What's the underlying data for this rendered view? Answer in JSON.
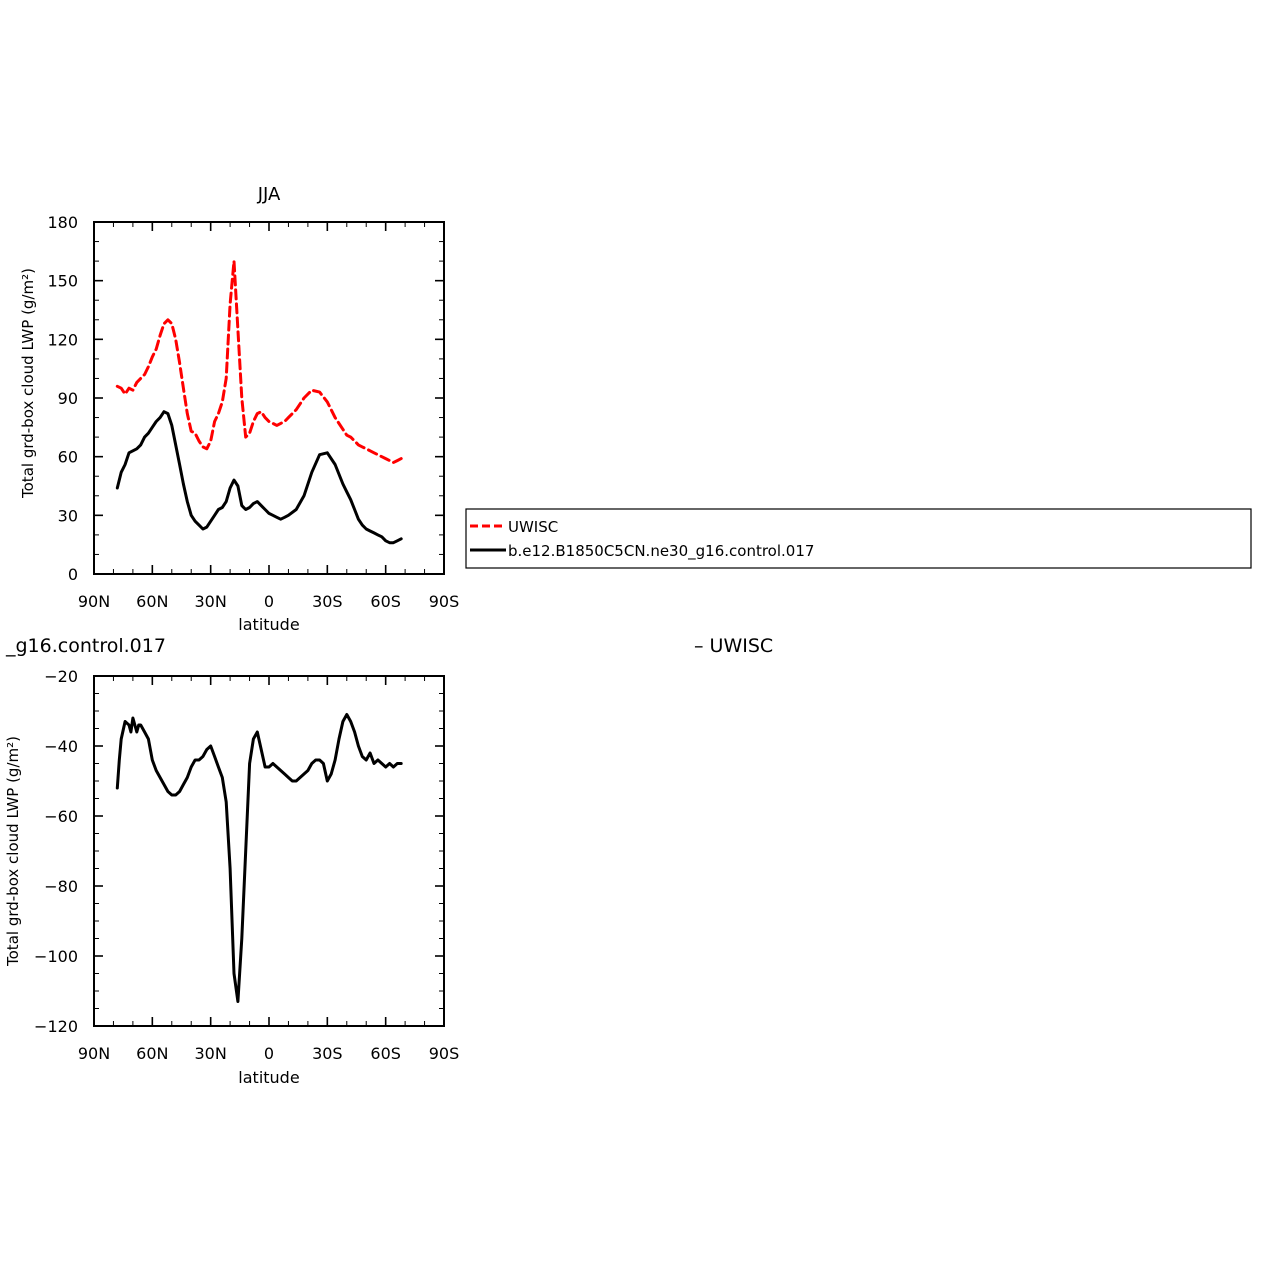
{
  "chart_data": [
    {
      "type": "line",
      "title": "JJA",
      "xlabel": "latitude",
      "ylabel": "Total grd-box cloud LWP (g/m²)",
      "xlim": [
        90,
        -90
      ],
      "ylim": [
        0,
        180
      ],
      "xticks": [
        {
          "value": 90,
          "label": "90N"
        },
        {
          "value": 60,
          "label": "60N"
        },
        {
          "value": 30,
          "label": "30N"
        },
        {
          "value": 0,
          "label": "0"
        },
        {
          "value": -30,
          "label": "30S"
        },
        {
          "value": -60,
          "label": "60S"
        },
        {
          "value": -90,
          "label": "90S"
        }
      ],
      "yticks": [
        {
          "value": 0,
          "label": "0"
        },
        {
          "value": 30,
          "label": "30"
        },
        {
          "value": 60,
          "label": "60"
        },
        {
          "value": 90,
          "label": "90"
        },
        {
          "value": 120,
          "label": "120"
        },
        {
          "value": 150,
          "label": "150"
        },
        {
          "value": 180,
          "label": "180"
        }
      ],
      "legend": {
        "placement": "right",
        "entries": [
          "UWISC",
          "b.e12.B1850C5CN.ne30_g16.control.017"
        ]
      },
      "series": [
        {
          "name": "UWISC",
          "color": "#ff0000",
          "dash": "dashed",
          "x": [
            78,
            76,
            74,
            72,
            70,
            68,
            66,
            64,
            62,
            60,
            58,
            56,
            54,
            52,
            50,
            48,
            46,
            44,
            42,
            40,
            38,
            36,
            34,
            32,
            30,
            28,
            26,
            24,
            22,
            20,
            18,
            16,
            14,
            12,
            10,
            8,
            6,
            4,
            2,
            0,
            -2,
            -4,
            -6,
            -8,
            -10,
            -14,
            -18,
            -22,
            -26,
            -30,
            -34,
            -38,
            -40,
            -42,
            -44,
            -46,
            -48,
            -50,
            -52,
            -54,
            -56,
            -58,
            -60,
            -62,
            -64,
            -66,
            -68
          ],
          "y": [
            96,
            95,
            92,
            95,
            94,
            98,
            100,
            102,
            106,
            111,
            115,
            122,
            128,
            130,
            128,
            120,
            108,
            95,
            82,
            73,
            72,
            68,
            65,
            64,
            68,
            78,
            82,
            88,
            100,
            138,
            160,
            125,
            90,
            70,
            72,
            78,
            82,
            83,
            80,
            78,
            77,
            76,
            77,
            78,
            80,
            84,
            90,
            94,
            93,
            88,
            80,
            74,
            71,
            70,
            68,
            66,
            65,
            64,
            63,
            62,
            61,
            60,
            59,
            58,
            57,
            58,
            59
          ]
        },
        {
          "name": "b.e12.B1850C5CN.ne30_g16.control.017",
          "color": "#000000",
          "dash": "solid",
          "x": [
            78,
            76,
            74,
            72,
            70,
            68,
            66,
            64,
            62,
            60,
            58,
            56,
            54,
            52,
            50,
            48,
            46,
            44,
            42,
            40,
            38,
            36,
            34,
            32,
            30,
            28,
            26,
            24,
            22,
            20,
            18,
            16,
            14,
            12,
            10,
            8,
            6,
            4,
            2,
            0,
            -2,
            -4,
            -6,
            -8,
            -10,
            -14,
            -18,
            -22,
            -26,
            -30,
            -34,
            -38,
            -40,
            -42,
            -44,
            -46,
            -48,
            -50,
            -52,
            -54,
            -56,
            -58,
            -60,
            -62,
            -64,
            -66,
            -68
          ],
          "y": [
            44,
            52,
            56,
            62,
            63,
            64,
            66,
            70,
            72,
            75,
            78,
            80,
            83,
            82,
            76,
            66,
            56,
            46,
            37,
            30,
            27,
            25,
            23,
            24,
            27,
            30,
            33,
            34,
            37,
            44,
            48,
            45,
            35,
            33,
            34,
            36,
            37,
            35,
            33,
            31,
            30,
            29,
            28,
            29,
            30,
            33,
            40,
            52,
            61,
            62,
            56,
            46,
            42,
            38,
            33,
            28,
            25,
            23,
            22,
            21,
            20,
            19,
            17,
            16,
            16,
            17,
            18
          ]
        }
      ]
    },
    {
      "type": "line",
      "title": "_g16.control.017",
      "subtitle": "– UWISC",
      "xlabel": "latitude",
      "ylabel": "Total grd-box cloud LWP (g/m²)",
      "xlim": [
        90,
        -90
      ],
      "ylim": [
        -120,
        -20
      ],
      "xticks": [
        {
          "value": 90,
          "label": "90N"
        },
        {
          "value": 60,
          "label": "60N"
        },
        {
          "value": 30,
          "label": "30N"
        },
        {
          "value": 0,
          "label": "0"
        },
        {
          "value": -30,
          "label": "30S"
        },
        {
          "value": -60,
          "label": "60S"
        },
        {
          "value": -90,
          "label": "90S"
        }
      ],
      "yticks": [
        {
          "value": -120,
          "label": "−120"
        },
        {
          "value": -100,
          "label": "−100"
        },
        {
          "value": -80,
          "label": "−80"
        },
        {
          "value": -60,
          "label": "−60"
        },
        {
          "value": -40,
          "label": "−40"
        },
        {
          "value": -20,
          "label": "−20"
        }
      ],
      "series": [
        {
          "color": "#000000",
          "dash": "solid",
          "x": [
            78,
            77,
            76,
            74,
            72,
            71,
            70,
            68,
            67,
            66,
            64,
            62,
            60,
            58,
            56,
            54,
            52,
            50,
            48,
            46,
            44,
            42,
            40,
            38,
            36,
            34,
            32,
            30,
            28,
            26,
            24,
            22,
            20,
            18,
            16,
            14,
            12,
            10,
            8,
            6,
            4,
            2,
            0,
            -2,
            -4,
            -6,
            -8,
            -10,
            -12,
            -14,
            -16,
            -18,
            -20,
            -22,
            -24,
            -26,
            -28,
            -30,
            -32,
            -34,
            -36,
            -38,
            -40,
            -42,
            -44,
            -46,
            -48,
            -50,
            -52,
            -54,
            -56,
            -58,
            -60,
            -62,
            -64,
            -66,
            -68
          ],
          "y": [
            -52,
            -44,
            -38,
            -33,
            -34,
            -36,
            -32,
            -36,
            -34,
            -34,
            -36,
            -38,
            -44,
            -47,
            -49,
            -51,
            -53,
            -54,
            -54,
            -53,
            -51,
            -49,
            -46,
            -44,
            -44,
            -43,
            -41,
            -40,
            -43,
            -46,
            -49,
            -56,
            -75,
            -105,
            -113,
            -95,
            -70,
            -45,
            -38,
            -36,
            -41,
            -46,
            -46,
            -45,
            -46,
            -47,
            -48,
            -49,
            -50,
            -50,
            -49,
            -48,
            -47,
            -45,
            -44,
            -44,
            -45,
            -50,
            -48,
            -44,
            -38,
            -33,
            -31,
            -33,
            -36,
            -40,
            -43,
            -44,
            -42,
            -45,
            -44,
            -45,
            -46,
            -45,
            -46,
            -45,
            -45
          ]
        }
      ]
    }
  ]
}
